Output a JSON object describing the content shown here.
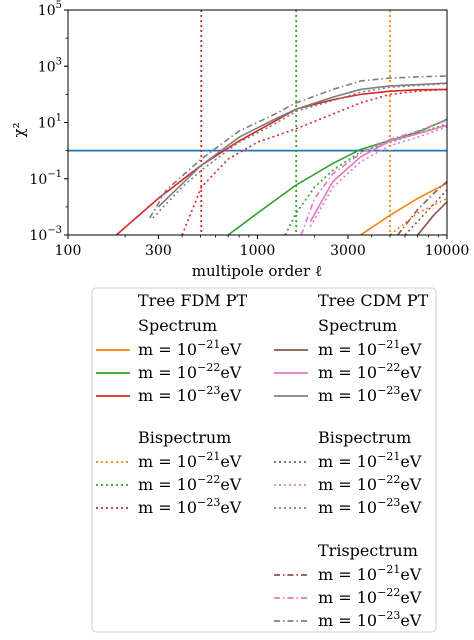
{
  "chart_data": {
    "type": "line",
    "xlabel": "multipole order ℓ",
    "ylabel": "χ²",
    "xscale": "log",
    "yscale": "log",
    "xlim": [
      100,
      10000
    ],
    "ylim": [
      0.001,
      100000
    ],
    "x_ticks": [
      {
        "value": 100,
        "label": "100"
      },
      {
        "value": 300,
        "label": "300"
      },
      {
        "value": 1000,
        "label": "1000"
      },
      {
        "value": 3000,
        "label": "3000"
      },
      {
        "value": 10000,
        "label": "10000"
      }
    ],
    "y_ticks": [
      {
        "value": 0.001,
        "base": "10",
        "exp": "−3"
      },
      {
        "value": 0.1,
        "base": "10",
        "exp": "−1"
      },
      {
        "value": 10,
        "base": "10",
        "exp": "1"
      },
      {
        "value": 1000,
        "base": "10",
        "exp": "3"
      },
      {
        "value": 100000,
        "base": "10",
        "exp": "5"
      }
    ],
    "hline": {
      "y": 1,
      "color": "#1f77b4"
    },
    "vlines": [
      {
        "x": 505,
        "color": "#d62728"
      },
      {
        "x": 1600,
        "color": "#2ca02c"
      },
      {
        "x": 5000,
        "color": "#ff7f0e"
      }
    ],
    "series": [
      {
        "name": "m = 10⁻²¹eV",
        "color": "#ff7f0e",
        "dash": "solid",
        "x": [
          3500,
          5000,
          7000,
          10000
        ],
        "y": [
          0.001,
          0.005,
          0.02,
          0.07
        ]
      },
      {
        "name": "m = 10⁻²²eV",
        "color": "#2ca02c",
        "dash": "solid",
        "x": [
          700,
          1000,
          1600,
          2500,
          3500,
          5000,
          7000,
          10000
        ],
        "y": [
          0.001,
          0.006,
          0.06,
          0.35,
          1.1,
          2.3,
          4.5,
          13
        ]
      },
      {
        "name": "m = 10⁻²³eV",
        "color": "#d62728",
        "dash": "solid",
        "x": [
          180,
          300,
          505,
          800,
          1200,
          1600,
          2500,
          3500,
          5000,
          7000,
          10000
        ],
        "y": [
          0.001,
          0.02,
          0.3,
          2.2,
          10,
          30,
          65,
          100,
          130,
          145,
          150
        ]
      },
      {
        "name": "m = 10⁻²¹eV",
        "color": "#ff7f0e",
        "dash": "dot",
        "x": [
          5000,
          7000,
          10000
        ],
        "y": [
          0.001,
          0.006,
          0.02
        ]
      },
      {
        "name": "m = 10⁻²²eV",
        "color": "#2ca02c",
        "dash": "dot",
        "x": [
          1400,
          1600,
          2000,
          2500,
          3500,
          5000,
          7000,
          10000
        ],
        "y": [
          0.001,
          0.006,
          0.05,
          0.2,
          0.9,
          2,
          4,
          9
        ]
      },
      {
        "name": "m = 10⁻²³eV",
        "color": "#d62728",
        "dash": "dot",
        "x": [
          400,
          505,
          700,
          1000,
          1600,
          2500,
          3500,
          5000,
          7000,
          10000
        ],
        "y": [
          0.001,
          0.05,
          0.5,
          2,
          6,
          20,
          50,
          100,
          130,
          150
        ]
      },
      {
        "name": "m = 10⁻²¹eV",
        "color": "#8c564b",
        "dash": "solid",
        "x": [
          7000,
          8500,
          10000
        ],
        "y": [
          0.001,
          0.005,
          0.015
        ]
      },
      {
        "name": "m = 10⁻²²eV",
        "color": "#e377c2",
        "dash": "solid",
        "x": [
          1900,
          2500,
          3500,
          5000,
          7000,
          10000
        ],
        "y": [
          0.003,
          0.08,
          0.6,
          2.2,
          4,
          8
        ]
      },
      {
        "name": "m = 10⁻²³eV",
        "color": "#7f7f7f",
        "dash": "solid",
        "x": [
          300,
          505,
          800,
          1200,
          1600,
          2500,
          3500,
          5000,
          10000
        ],
        "y": [
          0.01,
          0.3,
          3,
          12,
          30,
          80,
          150,
          200,
          250
        ]
      },
      {
        "name": "m = 10⁻²¹eV",
        "color": "#8c564b",
        "dash": "dot",
        "x": [
          6000,
          8000,
          10000
        ],
        "y": [
          0.001,
          0.008,
          0.04
        ]
      },
      {
        "name": "m = 10⁻²²eV",
        "color": "#e377c2",
        "dash": "dot",
        "x": [
          1900,
          2500,
          3500,
          5000,
          7000,
          10000
        ],
        "y": [
          0.002,
          0.05,
          0.4,
          1.5,
          3,
          7
        ]
      },
      {
        "name": "m = 10⁻²³eV",
        "color": "#7f7f7f",
        "dash": "dot",
        "x": [
          280,
          400,
          505,
          800,
          1200,
          1600,
          2500,
          3500,
          5000,
          10000
        ],
        "y": [
          0.004,
          0.05,
          0.2,
          2,
          8,
          25,
          60,
          120,
          180,
          240
        ]
      },
      {
        "name": "m = 10⁻²¹eV",
        "color": "#8c564b",
        "dash": "dashdot",
        "x": [
          5500,
          7000,
          8500,
          10000
        ],
        "y": [
          0.001,
          0.008,
          0.03,
          0.08
        ]
      },
      {
        "name": "m = 10⁻²²eV",
        "color": "#e377c2",
        "dash": "dashdot",
        "x": [
          1700,
          2000,
          2500,
          3500,
          5000,
          7000,
          10000
        ],
        "y": [
          0.001,
          0.02,
          0.15,
          0.8,
          2.5,
          5,
          12
        ]
      },
      {
        "name": "m = 10⁻²³eV",
        "color": "#7f7f7f",
        "dash": "dashdot",
        "x": [
          270,
          330,
          505,
          800,
          1200,
          1600,
          2500,
          3500,
          5000,
          7000,
          10000
        ],
        "y": [
          0.004,
          0.04,
          0.5,
          5,
          18,
          50,
          150,
          300,
          380,
          420,
          450
        ]
      }
    ]
  },
  "legend": {
    "col1_title": "Tree FDM PT",
    "col2_title": "Tree CDM PT",
    "spectrum": "Spectrum",
    "bispectrum": "Bispectrum",
    "trispectrum": "Trispectrum",
    "m_prefix": "m = 10",
    "unit": "eV",
    "exp_21": "−21",
    "exp_22": "−22",
    "exp_23": "−23"
  }
}
